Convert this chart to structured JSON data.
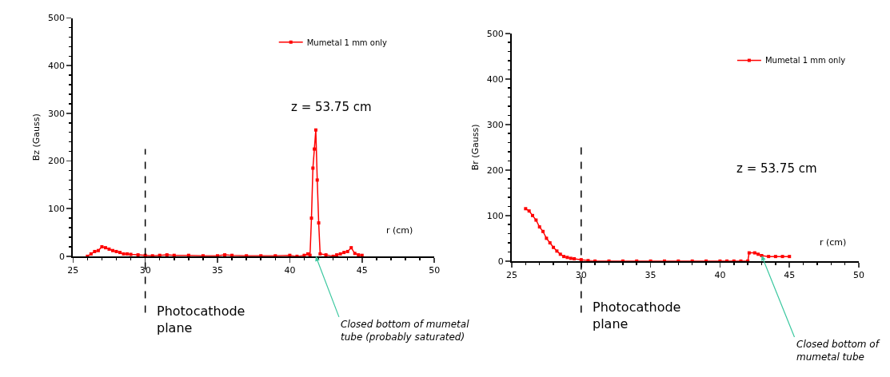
{
  "chart_data": [
    {
      "type": "line",
      "ylabel": "Bz (Gauss)",
      "xlabel": "r (cm)",
      "xlim": [
        25,
        50
      ],
      "xticks": [
        25,
        30,
        35,
        40,
        45,
        50
      ],
      "ylim": [
        0,
        500
      ],
      "yticks": [
        0,
        100,
        200,
        300,
        400,
        500
      ],
      "grid": false,
      "legend": "top right",
      "marker": "square",
      "line_style": "solid",
      "x": [
        26,
        26.25,
        26.5,
        26.75,
        27,
        27.25,
        27.5,
        27.75,
        28,
        28.25,
        28.5,
        28.75,
        29,
        29.5,
        30,
        30.5,
        31,
        31.5,
        32,
        33,
        34,
        35,
        35.5,
        36,
        37,
        38,
        39,
        40,
        40.5,
        41,
        41.25,
        41.4,
        41.5,
        41.6,
        41.7,
        41.8,
        41.9,
        42,
        42.1,
        42.5,
        43,
        43.25,
        43.5,
        43.75,
        44,
        44.25,
        44.5,
        44.75,
        45
      ],
      "series": [
        {
          "name": "Mumetal 1 mm only",
          "color": "#ff0000",
          "values": [
            0,
            5,
            10,
            12,
            20,
            18,
            15,
            12,
            10,
            8,
            5,
            5,
            4,
            3,
            2,
            1,
            2,
            3,
            2,
            2,
            1,
            1,
            3,
            2,
            1,
            1,
            1,
            2,
            0,
            2,
            5,
            2,
            80,
            185,
            225,
            265,
            160,
            70,
            5,
            3,
            0,
            3,
            5,
            8,
            10,
            18,
            6,
            3,
            2
          ]
        }
      ],
      "ref_lines": [
        {
          "axis": "x",
          "value": 30,
          "label": "Photocathode plane",
          "color": "#000000",
          "line_style": "dashed"
        }
      ],
      "annotations": [
        "z = 53.75 cm",
        {
          "text": "Closed bottom of mumetal tube (probably saturated)",
          "x": 41.8,
          "y": 0
        }
      ]
    },
    {
      "type": "line",
      "ylabel": "Br (Gauss)",
      "xlabel": "r (cm)",
      "xlim": [
        25,
        50
      ],
      "xticks": [
        25,
        30,
        35,
        40,
        45,
        50
      ],
      "ylim": [
        0,
        500
      ],
      "yticks": [
        0,
        100,
        200,
        300,
        400,
        500
      ],
      "grid": false,
      "legend": "top right",
      "marker": "square",
      "line_style": "solid",
      "x": [
        26,
        26.25,
        26.5,
        26.75,
        27,
        27.25,
        27.5,
        27.75,
        28,
        28.25,
        28.5,
        28.75,
        29,
        29.25,
        29.5,
        30,
        30.5,
        31,
        32,
        33,
        34,
        35,
        36,
        37,
        38,
        39,
        40,
        40.5,
        41,
        41.5,
        42,
        42.1,
        42.5,
        42.75,
        43,
        43.5,
        44,
        44.5,
        45
      ],
      "series": [
        {
          "name": "Mumetal 1 mm only",
          "color": "#ff0000",
          "values": [
            115,
            110,
            100,
            90,
            75,
            65,
            50,
            40,
            30,
            22,
            15,
            10,
            8,
            6,
            5,
            3,
            1,
            0,
            0,
            0,
            0,
            0,
            0,
            0,
            0,
            0,
            0,
            0,
            0,
            0,
            0,
            18,
            18,
            15,
            12,
            10,
            10,
            10,
            10
          ]
        }
      ],
      "ref_lines": [
        {
          "axis": "x",
          "value": 30,
          "label": "Photocathode plane",
          "color": "#000000",
          "line_style": "dashed"
        }
      ],
      "annotations": [
        "z = 53.75 cm",
        {
          "text": "Closed bottom of mumetal tube",
          "x": 43,
          "y": 12
        }
      ]
    }
  ]
}
